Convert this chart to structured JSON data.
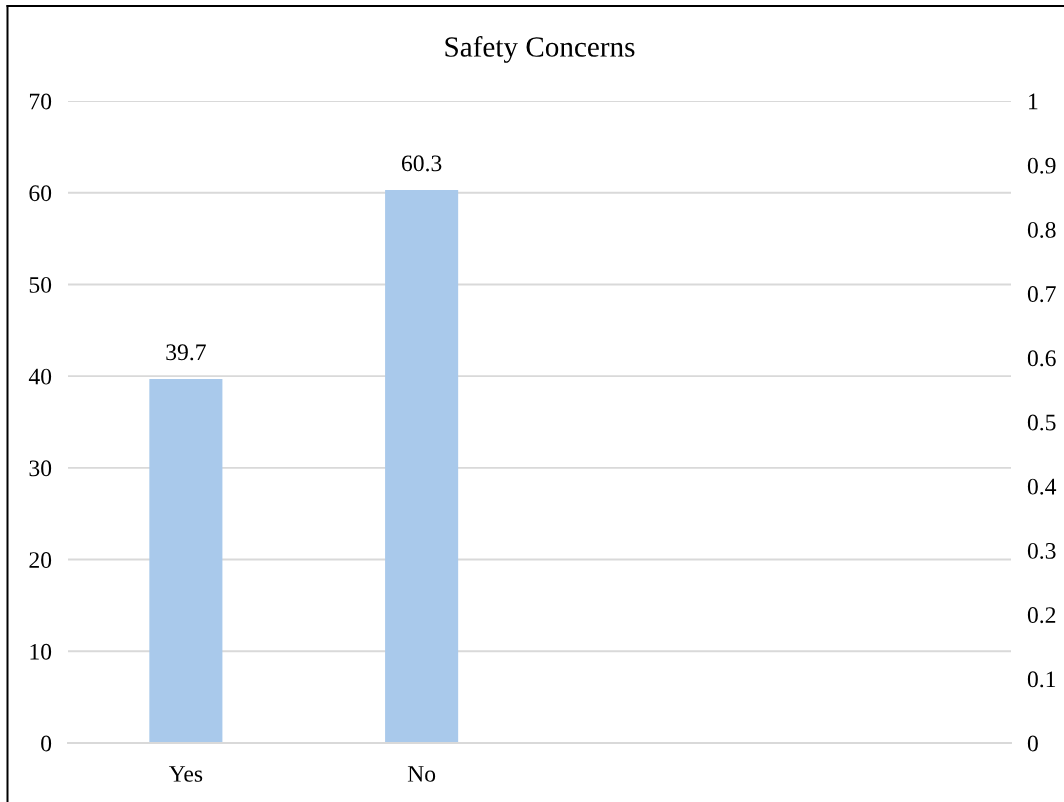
{
  "chart_data": {
    "type": "bar",
    "title": "Safety Concerns",
    "categories": [
      "Yes",
      "No",
      null,
      null
    ],
    "values": [
      39.7,
      60.3,
      null,
      null
    ],
    "color": "#a9c9eb",
    "data_labels": true,
    "ylim": [
      0,
      70
    ],
    "yticks": [
      0,
      10,
      20,
      30,
      40,
      50,
      60,
      70
    ],
    "y2lim": [
      0,
      1
    ],
    "y2ticks": [
      0,
      0.1,
      0.2,
      0.3,
      0.4,
      0.5,
      0.6,
      0.7,
      0.8,
      0.9,
      1
    ],
    "grid": "y"
  }
}
